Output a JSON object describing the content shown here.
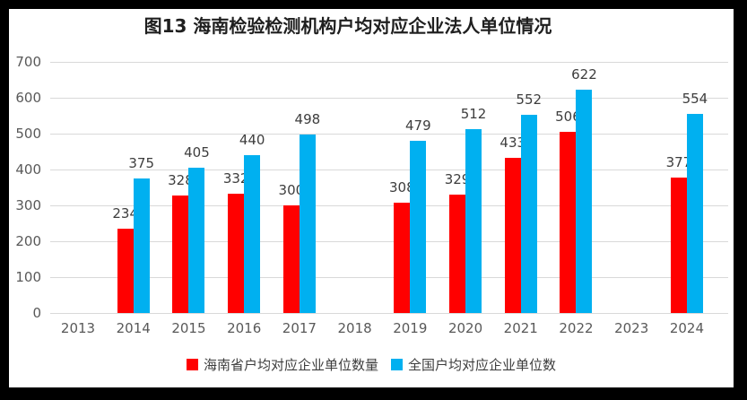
{
  "colors": {
    "frame_border": "#000000",
    "background": "#ffffff",
    "gridline": "#d9d9d9",
    "axis_text": "#595959",
    "data_label_text": "#3d3d3d",
    "title_text": "#1f1f1f"
  },
  "chart_data": {
    "type": "bar",
    "title": "图13 海南检验检测机构户均对应企业法人单位情况",
    "categories": [
      "2013",
      "2014",
      "2015",
      "2016",
      "2017",
      "2018",
      "2019",
      "2020",
      "2021",
      "2022",
      "2023",
      "2024"
    ],
    "series": [
      {
        "key": "hainan",
        "name": "海南省户均对应企业单位数量",
        "color": "#ff0000",
        "values": [
          null,
          234,
          328,
          332,
          300,
          null,
          308,
          329,
          433,
          506,
          null,
          377
        ]
      },
      {
        "key": "national",
        "name": "全国户均对应企业单位数",
        "color": "#00b0f0",
        "values": [
          null,
          375,
          405,
          440,
          498,
          null,
          479,
          512,
          552,
          622,
          null,
          554
        ]
      }
    ],
    "ylim": [
      0,
      700
    ],
    "yticks": [
      0,
      100,
      200,
      300,
      400,
      500,
      600,
      700
    ],
    "xlabel": "",
    "ylabel": "",
    "grid": true,
    "data_labels": true,
    "legend_position": "bottom"
  }
}
